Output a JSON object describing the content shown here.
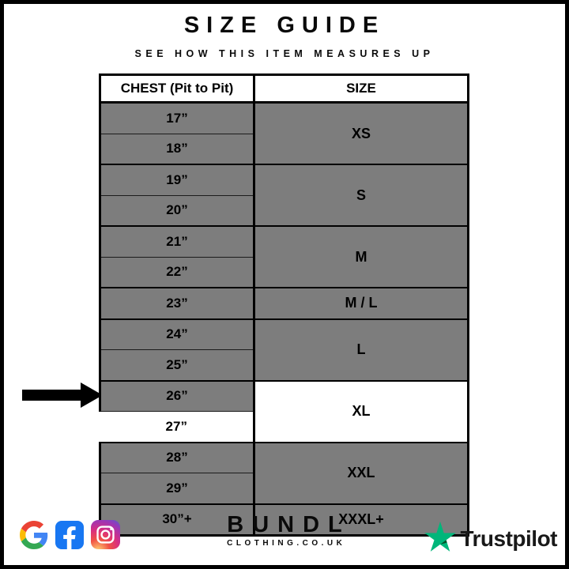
{
  "header": {
    "title": "SIZE GUIDE",
    "subtitle": "SEE HOW THIS ITEM MEASURES UP"
  },
  "table": {
    "columns": [
      "CHEST (Pit to Pit)",
      "SIZE"
    ],
    "groups": [
      {
        "size": "XS",
        "chest": [
          "17”",
          "18”"
        ]
      },
      {
        "size": "S",
        "chest": [
          "19”",
          "20”"
        ]
      },
      {
        "size": "M",
        "chest": [
          "21”",
          "22”"
        ]
      },
      {
        "size": "M / L",
        "chest": [
          "23”"
        ]
      },
      {
        "size": "L",
        "chest": [
          "24”",
          "25”"
        ]
      },
      {
        "size": "XL",
        "chest": [
          "26”",
          "27”"
        ]
      },
      {
        "size": "XXL",
        "chest": [
          "28”",
          "29”"
        ]
      },
      {
        "size": "XXXL+",
        "chest": [
          "30”+"
        ]
      }
    ],
    "highlight": {
      "chest": "27”",
      "size": "XL"
    }
  },
  "chart_data": {
    "type": "table",
    "title": "SIZE GUIDE",
    "subtitle": "SEE HOW THIS ITEM MEASURES UP",
    "columns": [
      "CHEST (Pit to Pit)",
      "SIZE"
    ],
    "rows": [
      [
        "17”",
        "XS"
      ],
      [
        "18”",
        "XS"
      ],
      [
        "19”",
        "S"
      ],
      [
        "20”",
        "S"
      ],
      [
        "21”",
        "M"
      ],
      [
        "22”",
        "M"
      ],
      [
        "23”",
        "M / L"
      ],
      [
        "24”",
        "L"
      ],
      [
        "25”",
        "L"
      ],
      [
        "26”",
        "XL"
      ],
      [
        "27”",
        "XL"
      ],
      [
        "28”",
        "XXL"
      ],
      [
        "29”",
        "XXL"
      ],
      [
        "30”+",
        "XXXL+"
      ]
    ],
    "highlighted_row": [
      "27”",
      "XL"
    ]
  },
  "footer": {
    "brand": "BUNDL",
    "brand_sub": "CLOTHING.CO.UK",
    "trustpilot_label": "Trustpilot",
    "social_icons": [
      "google-icon",
      "facebook-icon",
      "instagram-icon"
    ]
  },
  "colors": {
    "table_gray": "#7d7d7d",
    "border_black": "#000000",
    "facebook_blue": "#1877F2",
    "trustpilot_green": "#00B67A",
    "trustpilot_dark": "#005128"
  }
}
